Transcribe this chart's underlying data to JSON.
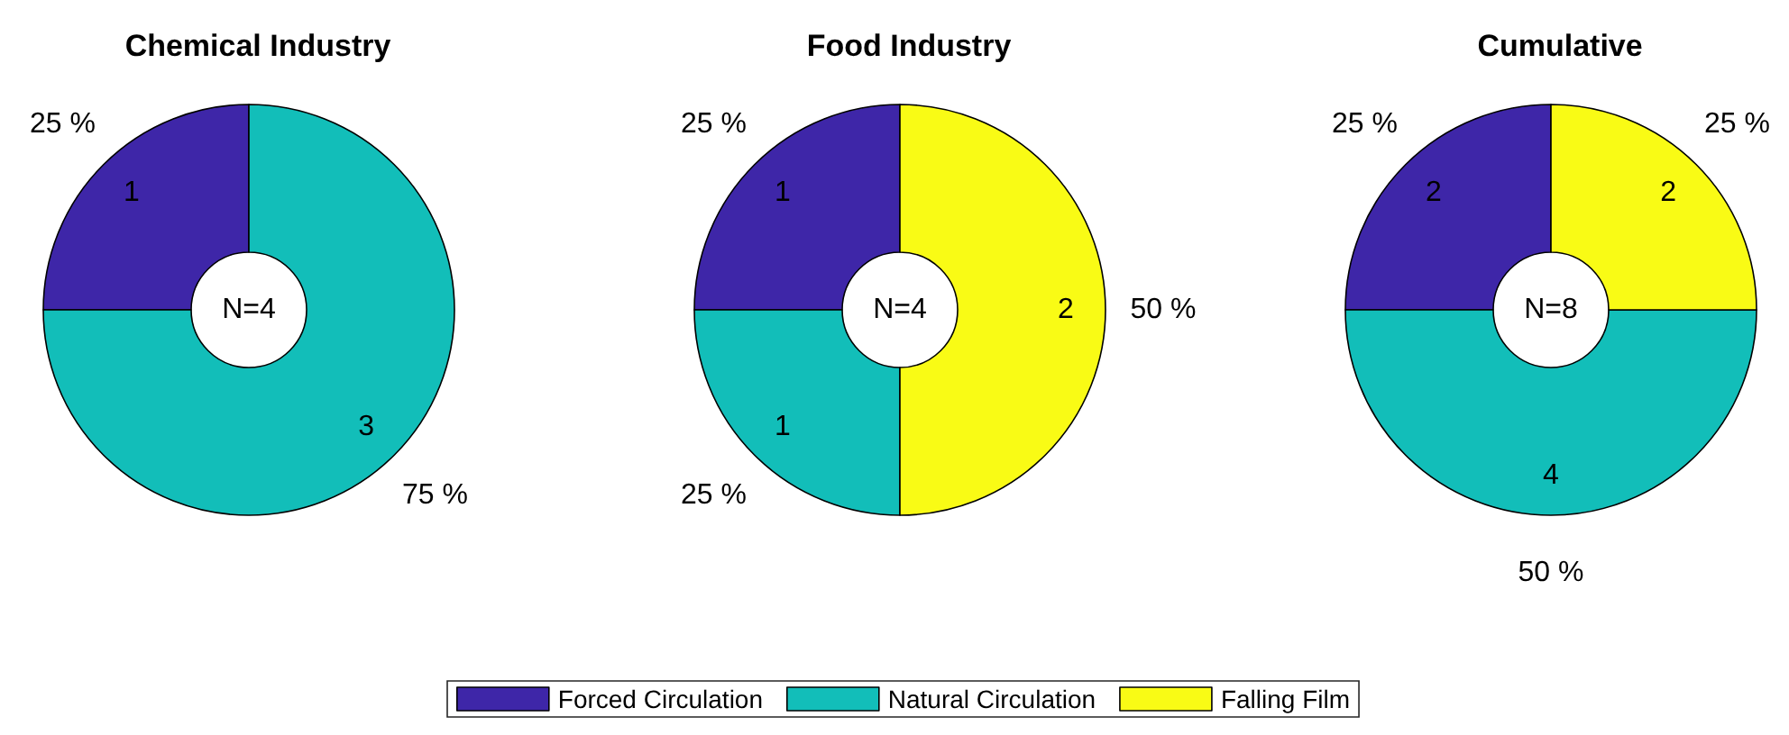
{
  "chart_data": {
    "type": "donut",
    "categories": [
      "Forced Circulation",
      "Natural Circulation",
      "Falling Film"
    ],
    "colors": [
      "#3e26a8",
      "#12beb9",
      "#f9fb15"
    ],
    "series": [
      {
        "name": "Chemical Industry",
        "values": [
          1,
          3,
          null
        ]
      },
      {
        "name": "Food Industry",
        "values": [
          1,
          1,
          2
        ]
      },
      {
        "name": "Cumulative",
        "values": [
          2,
          4,
          2
        ]
      }
    ],
    "data_labels": true,
    "annotations": [
      "N=4",
      "N=4",
      "N=8",
      "25 %",
      "75 %",
      "25 %",
      "25 %",
      "50 %",
      "25 %",
      "50 %",
      "25 %"
    ],
    "legend": "bottom"
  }
}
